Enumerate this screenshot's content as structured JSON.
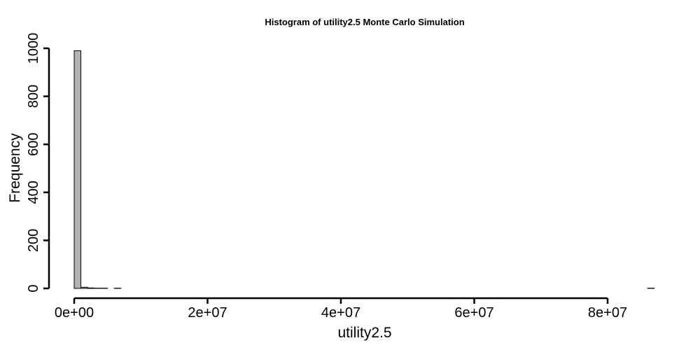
{
  "chart_data": {
    "type": "bar",
    "title": "Histogram of  utility2.5  Monte Carlo Simulation",
    "xlabel": "utility2.5",
    "ylabel": "Frequency",
    "xlim": [
      0,
      87000000
    ],
    "ylim": [
      0,
      1000
    ],
    "x_ticks": [
      0,
      20000000,
      40000000,
      60000000,
      80000000
    ],
    "x_tick_labels": [
      "0e+00",
      "2e+07",
      "4e+07",
      "6e+07",
      "8e+07"
    ],
    "y_ticks": [
      0,
      200,
      400,
      600,
      800,
      1000
    ],
    "y_tick_labels": [
      "0",
      "200",
      "400",
      "600",
      "800",
      "1000"
    ],
    "bin_width": 1000000,
    "bins_start": 0,
    "values": [
      990,
      5,
      2,
      1,
      1,
      0,
      1,
      0,
      0,
      0,
      0,
      0,
      0,
      0,
      0,
      0,
      0,
      0,
      0,
      0,
      0,
      0,
      0,
      0,
      0,
      0,
      0,
      0,
      0,
      0,
      0,
      0,
      0,
      0,
      0,
      0,
      0,
      0,
      0,
      0,
      0,
      0,
      0,
      0,
      0,
      0,
      0,
      0,
      0,
      0,
      0,
      0,
      0,
      0,
      0,
      0,
      0,
      0,
      0,
      0,
      0,
      0,
      0,
      0,
      0,
      0,
      0,
      0,
      0,
      0,
      0,
      0,
      0,
      0,
      0,
      0,
      0,
      0,
      0,
      0,
      0,
      0,
      0,
      0,
      0,
      0,
      1
    ],
    "grid": false,
    "colors": {
      "bar_fill": "#b3b3b3",
      "bar_stroke": "#000000"
    }
  }
}
